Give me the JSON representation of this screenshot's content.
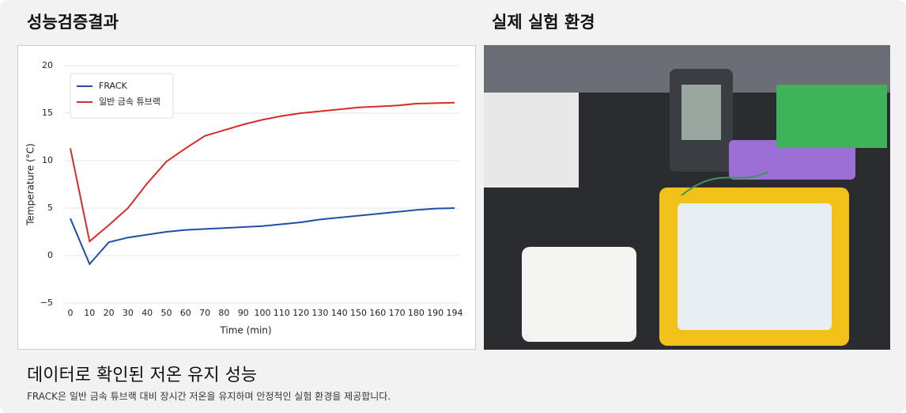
{
  "left_title": "성능검증결과",
  "right_title": "실제 실험 환경",
  "heading": "데이터로 확인된 저온 유지 성능",
  "description": "FRACK은 일반 금속 튜브랙 대비 장시간 저온을 유지하며 안정적인 실험 환경을 제공합니다.",
  "chart_data": {
    "type": "line",
    "x_label": "Time (min)",
    "y_label": "Temperature (°C)",
    "categories": [
      "0",
      "10",
      "20",
      "30",
      "40",
      "50",
      "60",
      "70",
      "80",
      "90",
      "100",
      "110",
      "120",
      "130",
      "140",
      "150",
      "160",
      "170",
      "180",
      "190",
      "194"
    ],
    "series": [
      {
        "name": "FRACK",
        "color": "#1f4fa8",
        "values": [
          3.9,
          -0.9,
          1.4,
          1.9,
          2.2,
          2.5,
          2.7,
          2.8,
          2.9,
          3.0,
          3.1,
          3.3,
          3.5,
          3.8,
          4.0,
          4.2,
          4.4,
          4.6,
          4.8,
          4.95,
          5.0
        ]
      },
      {
        "name": "일반 금속 튜브랙",
        "color": "#d92b2b",
        "values": [
          11.3,
          1.5,
          3.2,
          5.0,
          7.6,
          9.9,
          11.3,
          12.6,
          13.2,
          13.8,
          14.3,
          14.7,
          15.0,
          15.2,
          15.4,
          15.6,
          15.7,
          15.8,
          16.0,
          16.05,
          16.1
        ]
      }
    ],
    "ylim": [
      -5,
      20
    ],
    "yticks": [
      {
        "value": -5,
        "label": "−5"
      },
      0,
      5,
      10,
      15,
      20
    ],
    "grid": true,
    "legend": "upper-left"
  }
}
